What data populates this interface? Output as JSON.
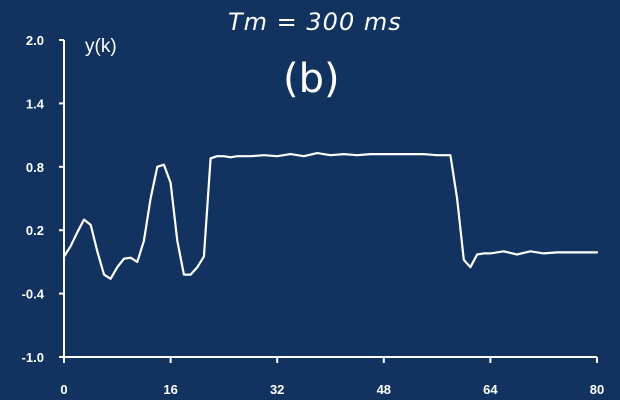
{
  "annotation": "Tm = 300 ms",
  "panel_label": "(b)",
  "colors": {
    "background": "#12335f",
    "line": "#ffffff",
    "axes": "#ffffff"
  },
  "chart_data": {
    "type": "line",
    "title": "",
    "xlabel": "",
    "ylabel": "y(k)",
    "xlim": [
      0,
      80
    ],
    "ylim": [
      -1.0,
      2.0
    ],
    "xticks": [
      0,
      16,
      32,
      48,
      64,
      80
    ],
    "xtick_labels": [
      "0",
      "16",
      "32",
      "48",
      "64",
      "80"
    ],
    "yticks": [
      2.0,
      1.4,
      0.8,
      0.2,
      -0.4,
      -1.0
    ],
    "ytick_labels": [
      "2.0",
      "1.4",
      "0.8",
      "0.2",
      "-0.4",
      "-1.0"
    ],
    "grid": false,
    "series": [
      {
        "x": [
          0,
          1,
          2,
          3,
          4,
          5,
          6,
          7,
          8,
          9,
          10,
          11,
          12,
          13,
          14,
          15,
          16,
          17,
          18,
          19,
          20,
          21,
          22,
          23,
          24,
          25,
          26,
          27,
          28,
          30,
          32,
          34,
          36,
          38,
          40,
          42,
          44,
          46,
          48,
          50,
          52,
          54,
          56,
          58,
          59,
          60,
          61,
          62,
          63,
          64,
          66,
          68,
          70,
          72,
          74,
          76,
          78,
          80
        ],
        "y": [
          -0.05,
          0.05,
          0.18,
          0.3,
          0.25,
          0.0,
          -0.22,
          -0.26,
          -0.15,
          -0.07,
          -0.06,
          -0.1,
          0.1,
          0.5,
          0.8,
          0.82,
          0.65,
          0.1,
          -0.22,
          -0.22,
          -0.15,
          -0.05,
          0.88,
          0.9,
          0.9,
          0.89,
          0.9,
          0.9,
          0.9,
          0.91,
          0.9,
          0.92,
          0.9,
          0.93,
          0.91,
          0.92,
          0.91,
          0.92,
          0.92,
          0.92,
          0.92,
          0.92,
          0.91,
          0.91,
          0.5,
          -0.08,
          -0.15,
          -0.03,
          -0.02,
          -0.02,
          0.0,
          -0.03,
          0.0,
          -0.02,
          -0.01,
          -0.01,
          -0.01,
          -0.01
        ]
      }
    ]
  }
}
